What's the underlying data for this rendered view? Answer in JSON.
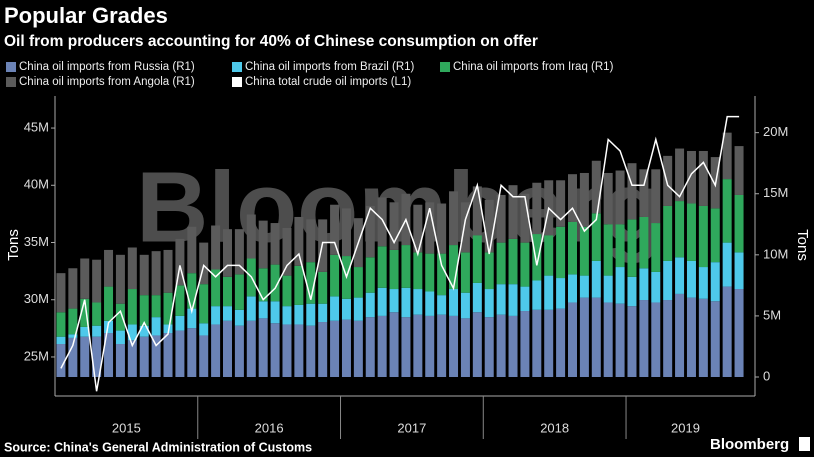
{
  "chart_data": {
    "type": "bar-line",
    "title": "Popular Grades",
    "subtitle": "Oil from producers accounting for 40% of Chinese consumption on offer",
    "source": "Source: China's General Administration of Customs",
    "brand": "Bloomberg",
    "watermark": "Bloomberg",
    "ylabel": "Tons",
    "y2label": "Tons",
    "categories": [
      null,
      null,
      null,
      null,
      null,
      "2015",
      null,
      null,
      null,
      null,
      null,
      null,
      null,
      null,
      null,
      null,
      null,
      "2016",
      null,
      null,
      null,
      null,
      null,
      null,
      null,
      null,
      null,
      null,
      null,
      "2017",
      null,
      null,
      null,
      null,
      null,
      null,
      null,
      null,
      null,
      null,
      null,
      "2018",
      null,
      null,
      null,
      null,
      null,
      null,
      null,
      null,
      null,
      null,
      "2019",
      null,
      null,
      null,
      null,
      null
    ],
    "ylim": [
      23250000.0,
      47800000.0
    ],
    "yticks": [
      {
        "value": 25000000.0,
        "label": "25M"
      },
      {
        "value": 30000000.0,
        "label": "30M"
      },
      {
        "value": 35000000.0,
        "label": "35M"
      },
      {
        "value": 40000000.0,
        "label": "40M"
      },
      {
        "value": 45000000.0,
        "label": "45M"
      }
    ],
    "y2lim": [
      0,
      23000000.0
    ],
    "y2ticks": [
      0,
      {
        "value": 5000000.0,
        "label": "5M"
      },
      {
        "value": 10000000.0,
        "label": "10M"
      },
      {
        "value": 15000000.0,
        "label": "15M"
      },
      {
        "value": 20000000.0,
        "label": "20M"
      }
    ],
    "series": [
      {
        "name": "China oil imports from Russia  (R1)",
        "color": "#6b83b6",
        "axis": "y2",
        "kind": "bar",
        "values": [
          2700000.0,
          3200000.0,
          3300000.0,
          3300000.0,
          3600000.0,
          2700000.0,
          3000000.0,
          3300000.0,
          3400000.0,
          3600000.0,
          3800000.0,
          4000000.0,
          3400000.0,
          4300000.0,
          4600000.0,
          4200000.0,
          4600000.0,
          4800000.0,
          4400000.0,
          4300000.0,
          4300000.0,
          4200000.0,
          4500000.0,
          4600000.0,
          4700000.0,
          4600000.0,
          4900000.0,
          5000000.0,
          5300000.0,
          4900000.0,
          5100000.0,
          5000000.0,
          5100000.0,
          5000000.0,
          4800000.0,
          5300000.0,
          4900000.0,
          5100000.0,
          5000000.0,
          5400000.0,
          5500000.0,
          5500000.0,
          5600000.0,
          6100000.0,
          6500000.0,
          6500000.0,
          6100000.0,
          6000000.0,
          5800000.0,
          6300000.0,
          6100000.0,
          6300000.0,
          6800000.0,
          6500000.0,
          6400000.0,
          6200000.0,
          7400000.0,
          7200000.0
        ]
      },
      {
        "name": "China oil imports from Brazil (R1)",
        "color": "#4ec9ea",
        "axis": "y2",
        "kind": "bar",
        "values": [
          600000.0,
          300000.0,
          800000.0,
          900000.0,
          1000000.0,
          1100000.0,
          1300000.0,
          900000.0,
          1500000.0,
          700000.0,
          1200000.0,
          1600000.0,
          1000000.0,
          1500000.0,
          1200000.0,
          1300000.0,
          2000000.0,
          1400000.0,
          1800000.0,
          1500000.0,
          1600000.0,
          1800000.0,
          1500000.0,
          2000000.0,
          1700000.0,
          1900000.0,
          2000000.0,
          2300000.0,
          1900000.0,
          2400000.0,
          2100000.0,
          2000000.0,
          1600000.0,
          2200000.0,
          2100000.0,
          2400000.0,
          2300000.0,
          2500000.0,
          2600000.0,
          2000000.0,
          2400000.0,
          2800000.0,
          2500000.0,
          2300000.0,
          1800000.0,
          3000000.0,
          2200000.0,
          3000000.0,
          2400000.0,
          2600000.0,
          2500000.0,
          3200000.0,
          3000000.0,
          3000000.0,
          2600000.0,
          3200000.0,
          3600000.0,
          3000000.0
        ]
      },
      {
        "name": "China oil imports from Iraq (R1)",
        "color": "#2fa85c",
        "axis": "y2",
        "kind": "bar",
        "values": [
          2000000.0,
          2100000.0,
          2300000.0,
          1900000.0,
          2800000.0,
          2200000.0,
          2900000.0,
          2500000.0,
          1800000.0,
          2600000.0,
          2500000.0,
          2900000.0,
          3200000.0,
          3000000.0,
          2400000.0,
          2900000.0,
          3100000.0,
          2700000.0,
          3000000.0,
          2500000.0,
          3200000.0,
          3400000.0,
          2600000.0,
          3400000.0,
          3500000.0,
          2500000.0,
          2900000.0,
          3400000.0,
          3200000.0,
          3500000.0,
          3000000.0,
          3100000.0,
          3400000.0,
          3600000.0,
          3300000.0,
          3900000.0,
          3000000.0,
          3400000.0,
          3700000.0,
          3600000.0,
          3800000.0,
          3300000.0,
          4200000.0,
          4300000.0,
          4000000.0,
          3900000.0,
          4200000.0,
          3500000.0,
          4700000.0,
          4200000.0,
          4000000.0,
          4500000.0,
          4600000.0,
          4700000.0,
          5000000.0,
          4400000.0,
          5200000.0,
          4700000.0
        ]
      },
      {
        "name": "China oil imports from Angola (R1)",
        "color": "#5b5b5b",
        "axis": "y2",
        "kind": "bar",
        "values": [
          3200000.0,
          3300000.0,
          3300000.0,
          3500000.0,
          3000000.0,
          4000000.0,
          3400000.0,
          3300000.0,
          3600000.0,
          3500000.0,
          3800000.0,
          3800000.0,
          3400000.0,
          3600000.0,
          3900000.0,
          3700000.0,
          3600000.0,
          3900000.0,
          3400000.0,
          3900000.0,
          4000000.0,
          3500000.0,
          4300000.0,
          4100000.0,
          3900000.0,
          4000000.0,
          4200000.0,
          4000000.0,
          3900000.0,
          4200000.0,
          3900000.0,
          4200000.0,
          4100000.0,
          4400000.0,
          4100000.0,
          4000000.0,
          4300000.0,
          3900000.0,
          4400000.0,
          4000000.0,
          4200000.0,
          4500000.0,
          3800000.0,
          3900000.0,
          4400000.0,
          4300000.0,
          4200000.0,
          4400000.0,
          4600000.0,
          3900000.0,
          4400000.0,
          4100000.0,
          4300000.0,
          4300000.0,
          4500000.0,
          4200000.0,
          3800000.0,
          4000000.0
        ]
      },
      {
        "name": "China total crude oil imports (L1)",
        "color": "#ffffff",
        "axis": "y",
        "kind": "line",
        "values": [
          24000000.0,
          26000000.0,
          30000000.0,
          22000000.0,
          28000000.0,
          29000000.0,
          26000000.0,
          28000000.0,
          26000000.0,
          27000000.0,
          33000000.0,
          29000000.0,
          33000000.0,
          32000000.0,
          33000000.0,
          33000000.0,
          32000000.0,
          30000000.0,
          31000000.0,
          33000000.0,
          34000000.0,
          30000000.0,
          35000000.0,
          35000000.0,
          32000000.0,
          35000000.0,
          38000000.0,
          37000000.0,
          35000000.0,
          37000000.0,
          34000000.0,
          38000000.0,
          33000000.0,
          31000000.0,
          37000000.0,
          40000000.0,
          34000000.0,
          40000000.0,
          39000000.0,
          39000000.0,
          33000000.0,
          38000000.0,
          37000000.0,
          38000000.0,
          36000000.0,
          37000000.0,
          44000000.0,
          43000000.0,
          40000000.0,
          40000000.0,
          44000000.0,
          40000000.0,
          39000000.0,
          41000000.0,
          42000000.0,
          40000000.0,
          46000000.0,
          46000000.0
        ]
      }
    ]
  }
}
